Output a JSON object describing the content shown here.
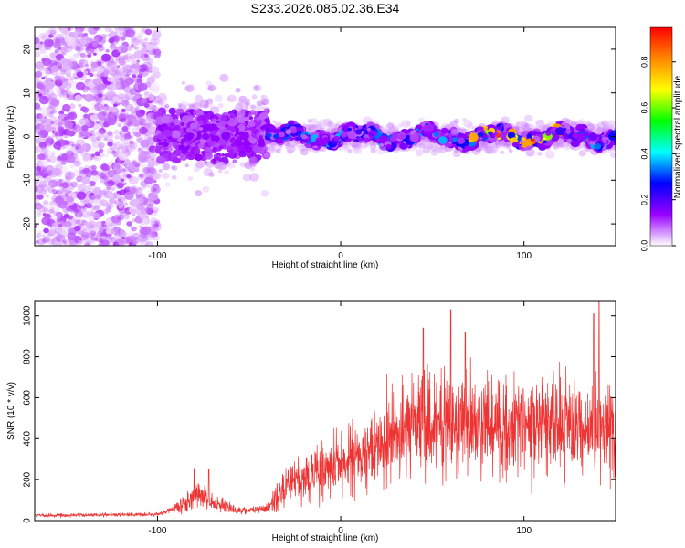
{
  "title": "S233.2026.085.02.36.E34",
  "chart_data": [
    {
      "type": "heatmap",
      "xlabel": "Height of straight line (km)",
      "ylabel": "Frequency (Hz)",
      "xlim": [
        -167,
        150
      ],
      "ylim": [
        -25,
        25
      ],
      "xticks": [
        -100,
        0,
        100
      ],
      "yticks": [
        -20,
        -10,
        0,
        10,
        20
      ],
      "colorbar": {
        "label": "Normalized spectral amplitude",
        "range": [
          0,
          0.95
        ],
        "ticks": [
          0.0,
          0.2,
          0.4,
          0.6,
          0.8
        ],
        "colors": [
          "#ffffff",
          "#9900ff",
          "#0000ff",
          "#00ffff",
          "#00ff00",
          "#ffff00",
          "#ff8800",
          "#ff0000"
        ]
      },
      "structure": {
        "noise_region_x": [
          -167,
          -100
        ],
        "transition_region_x": [
          -100,
          -40
        ],
        "band_region_x": [
          -40,
          150
        ],
        "band_center_freq": 0,
        "band_halfwidth_hz": 4,
        "peak_amplitude_region_x": [
          70,
          120
        ]
      }
    },
    {
      "type": "line",
      "xlabel": "Height of straight line (km)",
      "ylabel": "SNR (10 * v/v)",
      "xlim": [
        -167,
        150
      ],
      "ylim": [
        0,
        1070
      ],
      "xticks": [
        -100,
        0,
        100
      ],
      "yticks": [
        0,
        200,
        400,
        600,
        800,
        1000
      ],
      "series_color": "#ee3333",
      "envelope": [
        {
          "x": -167,
          "y": 25
        },
        {
          "x": -100,
          "y": 30
        },
        {
          "x": -88,
          "y": 70
        },
        {
          "x": -78,
          "y": 120
        },
        {
          "x": -68,
          "y": 80
        },
        {
          "x": -55,
          "y": 45
        },
        {
          "x": -40,
          "y": 60
        },
        {
          "x": -30,
          "y": 160
        },
        {
          "x": -15,
          "y": 230
        },
        {
          "x": 0,
          "y": 270
        },
        {
          "x": 15,
          "y": 330
        },
        {
          "x": 30,
          "y": 420
        },
        {
          "x": 45,
          "y": 470
        },
        {
          "x": 60,
          "y": 480
        },
        {
          "x": 75,
          "y": 450
        },
        {
          "x": 90,
          "y": 430
        },
        {
          "x": 100,
          "y": 460
        },
        {
          "x": 110,
          "y": 480
        },
        {
          "x": 120,
          "y": 470
        },
        {
          "x": 130,
          "y": 430
        },
        {
          "x": 140,
          "y": 460
        },
        {
          "x": 150,
          "y": 480
        }
      ],
      "peaks": [
        {
          "x": -80,
          "y": 255
        },
        {
          "x": -72,
          "y": 250
        },
        {
          "x": 45,
          "y": 940
        },
        {
          "x": 60,
          "y": 1030
        },
        {
          "x": 68,
          "y": 920
        },
        {
          "x": 138,
          "y": 1010
        },
        {
          "x": 141,
          "y": 1070
        }
      ]
    }
  ]
}
